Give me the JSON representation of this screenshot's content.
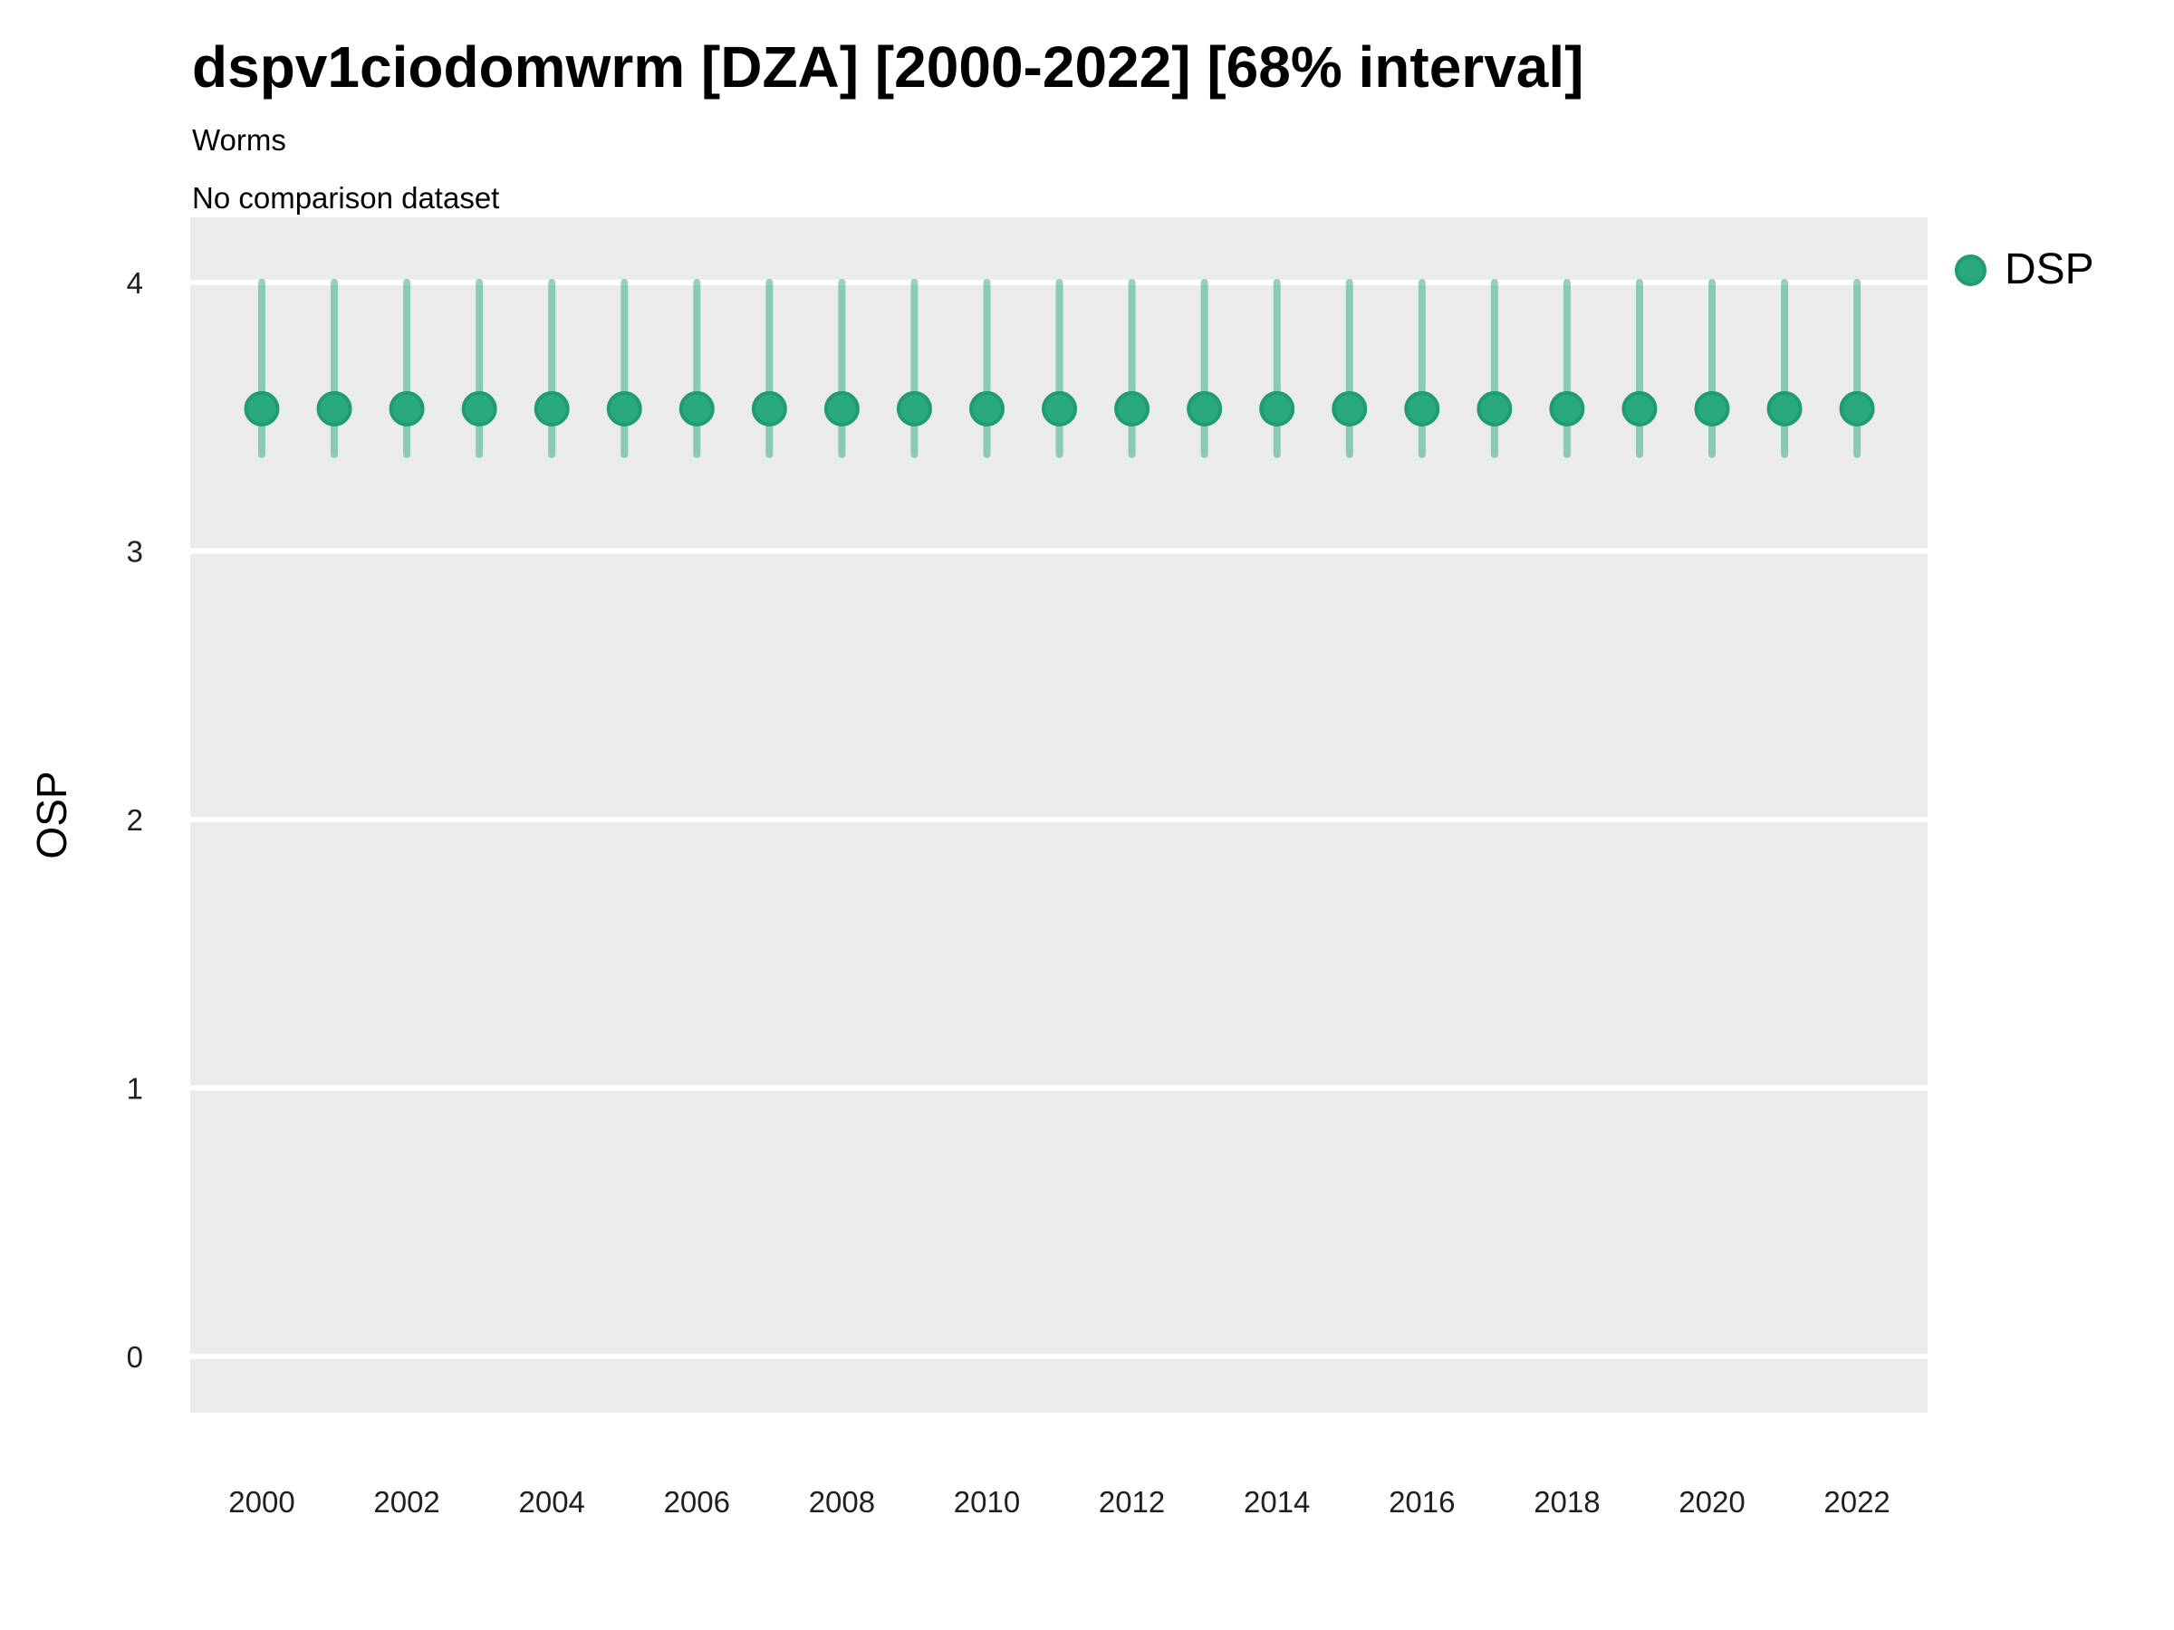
{
  "chart_data": {
    "type": "scatter",
    "subtype": "pointrange",
    "title": "dspv1ciodomwrm [DZA] [2000-2022] [68% interval]",
    "subtitle": "Worms",
    "note": "No comparison dataset",
    "xlabel": "",
    "ylabel": "OSP",
    "legend": {
      "position": "right",
      "entries": [
        {
          "label": "DSP",
          "color": "#2AA87E"
        }
      ]
    },
    "x": [
      2000,
      2001,
      2002,
      2003,
      2004,
      2005,
      2006,
      2007,
      2008,
      2009,
      2010,
      2011,
      2012,
      2013,
      2014,
      2015,
      2016,
      2017,
      2018,
      2019,
      2020,
      2021,
      2022
    ],
    "series": [
      {
        "name": "DSP",
        "values": [
          3.53,
          3.53,
          3.53,
          3.53,
          3.53,
          3.53,
          3.53,
          3.53,
          3.53,
          3.53,
          3.53,
          3.53,
          3.53,
          3.53,
          3.53,
          3.53,
          3.53,
          3.53,
          3.53,
          3.53,
          3.53,
          3.53,
          3.53
        ],
        "lower": [
          3.36,
          3.36,
          3.36,
          3.36,
          3.36,
          3.36,
          3.36,
          3.36,
          3.36,
          3.36,
          3.36,
          3.36,
          3.36,
          3.36,
          3.36,
          3.36,
          3.36,
          3.36,
          3.36,
          3.36,
          3.36,
          3.36,
          3.36
        ],
        "upper": [
          4.0,
          4.0,
          4.0,
          4.0,
          4.0,
          4.0,
          4.0,
          4.0,
          4.0,
          4.0,
          4.0,
          4.0,
          4.0,
          4.0,
          4.0,
          4.0,
          4.0,
          4.0,
          4.0,
          4.0,
          4.0,
          4.0,
          4.0
        ]
      }
    ],
    "xticks": [
      2000,
      2002,
      2004,
      2006,
      2008,
      2010,
      2012,
      2014,
      2016,
      2018,
      2020,
      2022
    ],
    "yticks": [
      0,
      1,
      2,
      3,
      4
    ],
    "xlim": [
      1999,
      2023
    ],
    "ylim": [
      -0.2,
      4.24
    ],
    "grid": "major-horizontal",
    "theme": {
      "panel_bg": "#EBEBEB",
      "gridline": "#FFFFFF",
      "point_fill": "#2AA87E",
      "point_stroke": "#1E9C72",
      "errorbar_color": "#2AA87E",
      "errorbar_opacity": 0.5,
      "text_color": "#000000",
      "tick_label_color": "#1F1F1F"
    }
  }
}
